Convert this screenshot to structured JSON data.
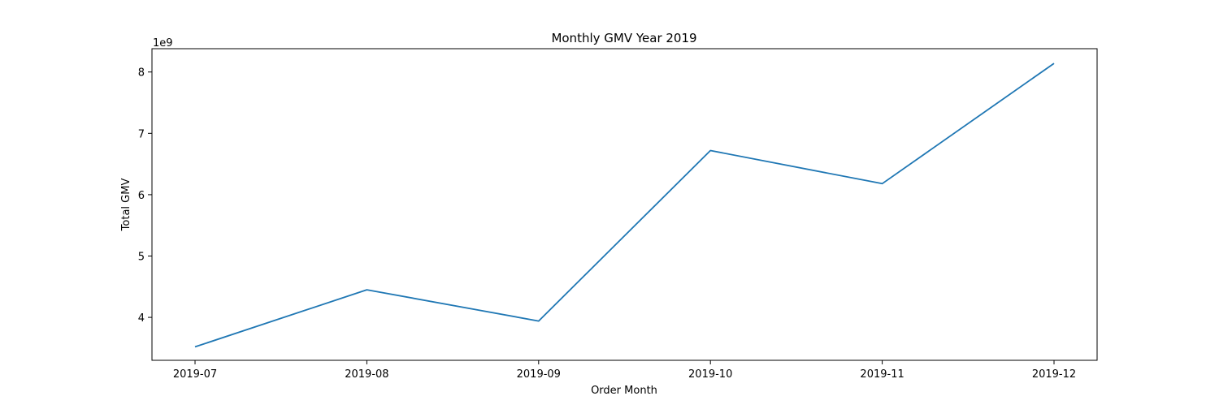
{
  "chart_data": {
    "type": "line",
    "title": "Monthly GMV Year 2019",
    "xlabel": "Order Month",
    "ylabel": "Total GMV",
    "y_scale_label": "1e9",
    "x": [
      "2019-07",
      "2019-08",
      "2019-09",
      "2019-10",
      "2019-11",
      "2019-12"
    ],
    "series": [
      {
        "values": [
          3520000000.0,
          4450000000.0,
          3940000000.0,
          6720000000.0,
          6180000000.0,
          8140000000.0
        ],
        "color": "#1f77b4"
      }
    ],
    "ylim": [
      3300000000.0,
      8380000000.0
    ],
    "y_ticks": [
      4,
      5,
      6,
      7,
      8
    ],
    "y_tick_multiplier": 1000000000.0,
    "grid": false,
    "legend": false
  }
}
